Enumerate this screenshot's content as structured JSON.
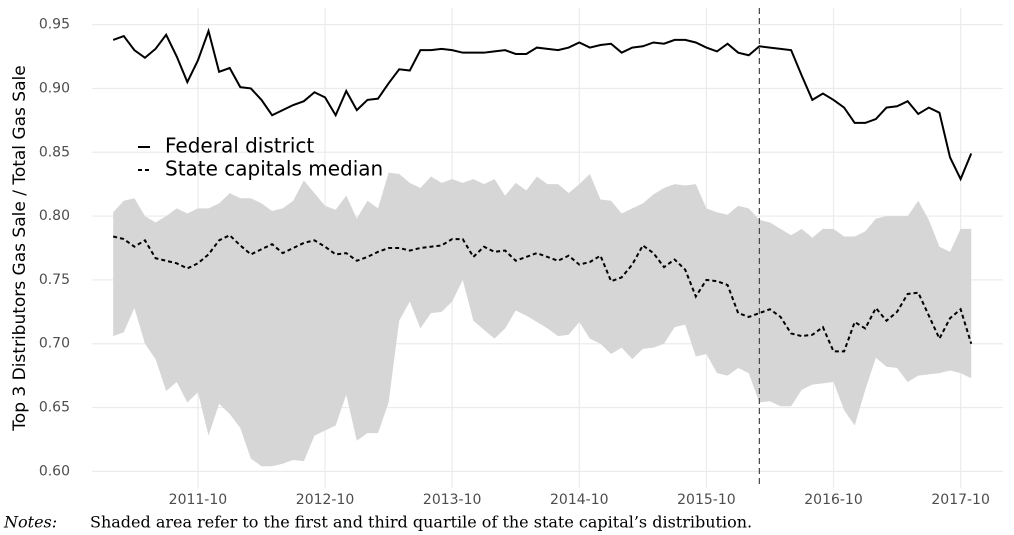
{
  "chart_data": {
    "type": "line",
    "y_label": "Top 3 Distributors Gas Sale / Total Gas Sale",
    "x": [
      "2011-02",
      "2011-03",
      "2011-04",
      "2011-05",
      "2011-06",
      "2011-07",
      "2011-08",
      "2011-09",
      "2011-10",
      "2011-11",
      "2011-12",
      "2012-01",
      "2012-02",
      "2012-03",
      "2012-04",
      "2012-05",
      "2012-06",
      "2012-07",
      "2012-08",
      "2012-09",
      "2012-10",
      "2012-11",
      "2012-12",
      "2013-01",
      "2013-02",
      "2013-03",
      "2013-04",
      "2013-05",
      "2013-06",
      "2013-07",
      "2013-08",
      "2013-09",
      "2013-10",
      "2013-11",
      "2013-12",
      "2014-01",
      "2014-02",
      "2014-03",
      "2014-04",
      "2014-05",
      "2014-06",
      "2014-07",
      "2014-08",
      "2014-09",
      "2014-10",
      "2014-11",
      "2014-12",
      "2015-01",
      "2015-02",
      "2015-03",
      "2015-04",
      "2015-05",
      "2015-06",
      "2015-07",
      "2015-08",
      "2015-09",
      "2015-10",
      "2015-11",
      "2015-12",
      "2016-01",
      "2016-02",
      "2016-03",
      "2016-04",
      "2016-05",
      "2016-06",
      "2016-07",
      "2016-08",
      "2016-09",
      "2016-10",
      "2016-11",
      "2016-12",
      "2017-01",
      "2017-02",
      "2017-03",
      "2017-04",
      "2017-05",
      "2017-06",
      "2017-07",
      "2017-08",
      "2017-09",
      "2017-10",
      "2017-11"
    ],
    "series": [
      {
        "name": "Federal district",
        "color": "#000000",
        "dash": "solid",
        "values": [
          0.938,
          0.941,
          0.93,
          0.924,
          0.931,
          0.942,
          0.925,
          0.905,
          0.922,
          0.945,
          0.913,
          0.916,
          0.901,
          0.9,
          0.891,
          0.879,
          0.883,
          0.887,
          0.89,
          0.897,
          0.893,
          0.879,
          0.898,
          0.883,
          0.891,
          0.892,
          0.904,
          0.915,
          0.914,
          0.93,
          0.93,
          0.931,
          0.93,
          0.928,
          0.928,
          0.928,
          0.929,
          0.93,
          0.927,
          0.927,
          0.932,
          0.931,
          0.93,
          0.932,
          0.936,
          0.932,
          0.934,
          0.935,
          0.928,
          0.932,
          0.933,
          0.936,
          0.935,
          0.938,
          0.938,
          0.936,
          0.932,
          0.929,
          0.935,
          0.928,
          0.926,
          0.933,
          0.932,
          0.931,
          0.93,
          0.91,
          0.891,
          0.896,
          0.891,
          0.885,
          0.873,
          0.873,
          0.876,
          0.885,
          0.886,
          0.89,
          0.88,
          0.885,
          0.881,
          0.846,
          0.829,
          0.849
        ]
      },
      {
        "name": "State capitals median",
        "color": "#000000",
        "dash": "dashed",
        "values": [
          0.784,
          0.782,
          0.776,
          0.781,
          0.767,
          0.765,
          0.763,
          0.759,
          0.763,
          0.77,
          0.781,
          0.785,
          0.777,
          0.77,
          0.774,
          0.778,
          0.771,
          0.775,
          0.779,
          0.781,
          0.776,
          0.77,
          0.771,
          0.765,
          0.768,
          0.772,
          0.775,
          0.775,
          0.773,
          0.775,
          0.776,
          0.777,
          0.782,
          0.782,
          0.768,
          0.776,
          0.772,
          0.773,
          0.765,
          0.768,
          0.771,
          0.768,
          0.765,
          0.769,
          0.762,
          0.764,
          0.769,
          0.749,
          0.752,
          0.762,
          0.777,
          0.771,
          0.76,
          0.766,
          0.758,
          0.737,
          0.75,
          0.749,
          0.746,
          0.724,
          0.721,
          0.724,
          0.727,
          0.721,
          0.708,
          0.706,
          0.707,
          0.713,
          0.694,
          0.694,
          0.717,
          0.712,
          0.728,
          0.718,
          0.725,
          0.739,
          0.74,
          0.722,
          0.704,
          0.72,
          0.727,
          0.7
        ]
      }
    ],
    "band": {
      "color": "#d6d6d6",
      "upper": [
        0.803,
        0.812,
        0.814,
        0.8,
        0.795,
        0.8,
        0.806,
        0.802,
        0.806,
        0.806,
        0.81,
        0.818,
        0.814,
        0.814,
        0.81,
        0.804,
        0.806,
        0.812,
        0.828,
        0.818,
        0.808,
        0.805,
        0.816,
        0.798,
        0.812,
        0.806,
        0.834,
        0.833,
        0.826,
        0.822,
        0.831,
        0.826,
        0.829,
        0.826,
        0.829,
        0.825,
        0.829,
        0.816,
        0.826,
        0.82,
        0.831,
        0.825,
        0.825,
        0.818,
        0.825,
        0.833,
        0.813,
        0.812,
        0.802,
        0.806,
        0.81,
        0.817,
        0.822,
        0.825,
        0.824,
        0.825,
        0.806,
        0.803,
        0.801,
        0.808,
        0.806,
        0.797,
        0.795,
        0.79,
        0.785,
        0.79,
        0.783,
        0.79,
        0.79,
        0.784,
        0.784,
        0.788,
        0.798,
        0.8,
        0.8,
        0.8,
        0.812,
        0.797,
        0.776,
        0.772,
        0.79,
        0.79
      ],
      "lower": [
        0.706,
        0.709,
        0.728,
        0.7,
        0.688,
        0.663,
        0.67,
        0.654,
        0.662,
        0.628,
        0.653,
        0.645,
        0.634,
        0.61,
        0.604,
        0.604,
        0.606,
        0.609,
        0.608,
        0.628,
        0.632,
        0.636,
        0.66,
        0.624,
        0.63,
        0.63,
        0.654,
        0.718,
        0.733,
        0.712,
        0.724,
        0.725,
        0.733,
        0.75,
        0.718,
        0.711,
        0.704,
        0.712,
        0.726,
        0.722,
        0.717,
        0.712,
        0.706,
        0.707,
        0.717,
        0.704,
        0.7,
        0.692,
        0.697,
        0.688,
        0.696,
        0.697,
        0.7,
        0.713,
        0.715,
        0.69,
        0.692,
        0.677,
        0.675,
        0.681,
        0.677,
        0.654,
        0.655,
        0.651,
        0.651,
        0.664,
        0.668,
        0.669,
        0.67,
        0.648,
        0.636,
        0.664,
        0.689,
        0.682,
        0.681,
        0.67,
        0.675,
        0.676,
        0.677,
        0.679,
        0.677,
        0.673
      ]
    },
    "vline": "2016-03",
    "xlim": [
      "2010-12",
      "2018-02"
    ],
    "xticks": [
      "2011-10",
      "2012-10",
      "2013-10",
      "2014-10",
      "2015-10",
      "2016-10",
      "2017-10"
    ],
    "ylim": [
      0.587,
      0.963
    ],
    "yticks": [
      {
        "value": 0.6,
        "label": "0.60"
      },
      0.65,
      {
        "value": 0.7,
        "label": "0.70"
      },
      0.75,
      {
        "value": 0.8,
        "label": "0.80"
      },
      0.85,
      {
        "value": 0.9,
        "label": "0.90"
      },
      0.95
    ],
    "grid": true,
    "legend": "top-left",
    "notes": {
      "label": "Notes:",
      "text": "Shaded area refer to the first and third quartile of the state capital’s distribution."
    }
  }
}
